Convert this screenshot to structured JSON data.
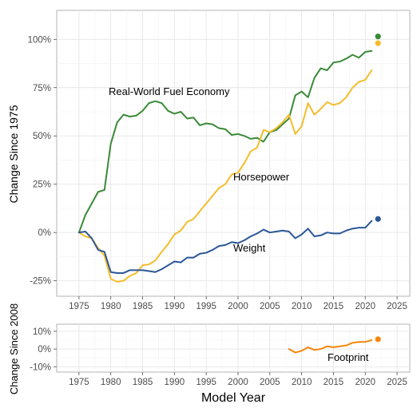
{
  "chart_data": [
    {
      "type": "line",
      "ylabel": "Change Since 1975",
      "xlim": [
        1971.5,
        2027
      ],
      "ylim": [
        -33,
        115
      ],
      "x_ticks": [
        "1975",
        "1980",
        "1985",
        "1990",
        "1995",
        "2000",
        "2005",
        "2010",
        "2015",
        "2020",
        "2025"
      ],
      "y_ticks": [
        "-25%",
        "0%",
        "25%",
        "50%",
        "75%",
        "100%"
      ],
      "grid": true,
      "series": [
        {
          "name": "Real-World Fuel Economy",
          "color": "#3a8a3a",
          "x": [
            1975,
            1976,
            1977,
            1978,
            1979,
            1980,
            1981,
            1982,
            1983,
            1984,
            1985,
            1986,
            1987,
            1988,
            1989,
            1990,
            1991,
            1992,
            1993,
            1994,
            1995,
            1996,
            1997,
            1998,
            1999,
            2000,
            2001,
            2002,
            2003,
            2004,
            2005,
            2006,
            2007,
            2008,
            2009,
            2010,
            2011,
            2012,
            2013,
            2014,
            2015,
            2016,
            2017,
            2018,
            2019,
            2020,
            2021
          ],
          "y": [
            0,
            9,
            15,
            21,
            22,
            46,
            57,
            61,
            60,
            60.5,
            63,
            67,
            68,
            67,
            63,
            61.5,
            62.5,
            59,
            59.5,
            55.5,
            56.5,
            56,
            54,
            53.5,
            50.5,
            51,
            50,
            48.5,
            49,
            47,
            52,
            53,
            56,
            59,
            71,
            73,
            70,
            80,
            85,
            84,
            88,
            88.5,
            90,
            92,
            90.5,
            93.5,
            94
          ],
          "end_point": {
            "x": 2022,
            "y": 101.5
          }
        },
        {
          "name": "Horsepower",
          "color": "#f4bd2e",
          "x": [
            1975,
            1976,
            1977,
            1978,
            1979,
            1980,
            1981,
            1982,
            1983,
            1984,
            1985,
            1986,
            1987,
            1988,
            1989,
            1990,
            1991,
            1992,
            1993,
            1994,
            1995,
            1996,
            1997,
            1998,
            1999,
            2000,
            2001,
            2002,
            2003,
            2004,
            2005,
            2006,
            2007,
            2008,
            2009,
            2010,
            2011,
            2012,
            2013,
            2014,
            2015,
            2016,
            2017,
            2018,
            2019,
            2020,
            2021
          ],
          "y": [
            0,
            -2,
            -3,
            -8,
            -12,
            -24,
            -25.5,
            -25,
            -22.5,
            -21,
            -17,
            -16.5,
            -14.5,
            -10,
            -6,
            -1,
            1,
            5.5,
            7,
            11,
            15,
            19,
            23,
            25,
            30,
            31,
            36,
            42,
            44,
            53,
            52,
            54,
            57,
            61,
            51,
            55,
            67,
            61,
            64,
            67.5,
            66,
            67,
            70,
            75,
            78,
            79,
            84
          ],
          "end_point": {
            "x": 2022,
            "y": 98
          }
        },
        {
          "name": "Weight",
          "color": "#2b5797",
          "x": [
            1975,
            1976,
            1977,
            1978,
            1979,
            1980,
            1981,
            1982,
            1983,
            1984,
            1985,
            1986,
            1987,
            1988,
            1989,
            1990,
            1991,
            1992,
            1993,
            1994,
            1995,
            1996,
            1997,
            1998,
            1999,
            2000,
            2001,
            2002,
            2003,
            2004,
            2005,
            2006,
            2007,
            2008,
            2009,
            2010,
            2011,
            2012,
            2013,
            2014,
            2015,
            2016,
            2017,
            2018,
            2019,
            2020,
            2021
          ],
          "y": [
            0,
            0.5,
            -3,
            -9,
            -10,
            -20.5,
            -21,
            -21,
            -19.5,
            -19.5,
            -19.5,
            -20,
            -20.5,
            -19,
            -17,
            -15,
            -15.5,
            -13,
            -13,
            -11,
            -10.5,
            -9,
            -7,
            -6.5,
            -5,
            -5.5,
            -4,
            -2,
            -0.5,
            1.5,
            0,
            0.5,
            1,
            0.5,
            -3,
            -1,
            2,
            -2,
            -1.5,
            0,
            -0.5,
            -0.5,
            1,
            2,
            2.5,
            2.5,
            6
          ],
          "end_point": {
            "x": 2022,
            "y": 7
          }
        }
      ]
    },
    {
      "type": "line",
      "ylabel": "Change Since 2008",
      "xlabel": "Model Year",
      "xlim": [
        1971.5,
        2027
      ],
      "ylim": [
        -13,
        14
      ],
      "x_ticks": [
        "1975",
        "1980",
        "1985",
        "1990",
        "1995",
        "2000",
        "2005",
        "2010",
        "2015",
        "2020",
        "2025"
      ],
      "y_ticks": [
        "-10%",
        "0%",
        "10%"
      ],
      "grid": true,
      "series": [
        {
          "name": "Footprint",
          "color": "#f5870f",
          "x": [
            2008,
            2009,
            2010,
            2011,
            2012,
            2013,
            2014,
            2015,
            2016,
            2017,
            2018,
            2019,
            2020,
            2021
          ],
          "y": [
            0,
            -2,
            -1,
            1,
            -0.5,
            0,
            1.5,
            1,
            1.5,
            2,
            3.5,
            4,
            4,
            5
          ],
          "end_point": {
            "x": 2022,
            "y": 5.5
          }
        }
      ]
    }
  ]
}
